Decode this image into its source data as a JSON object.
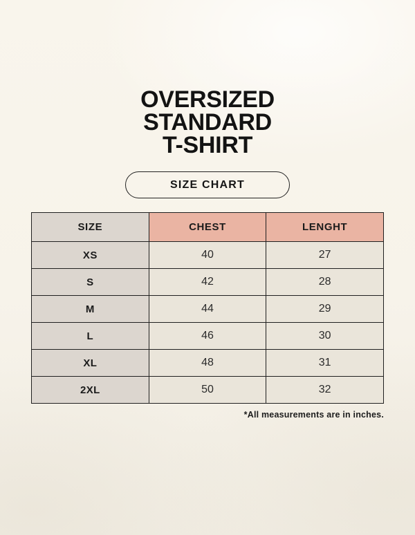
{
  "header": {
    "title_lines": [
      "OVERSIZED",
      "STANDARD",
      "T-SHIRT"
    ],
    "badge_label": "SIZE CHART"
  },
  "footnote": {
    "text": "*All measurements are in inches."
  },
  "colors": {
    "background": "#f7f3ea",
    "header_pink": "#eab4a3",
    "size_column_gray": "#dcd6cf",
    "value_cell_cream": "#eae5da",
    "border": "#1f1f1f",
    "text": "#1a1a1a"
  },
  "chart_data": {
    "type": "table",
    "title": "SIZE CHART",
    "columns": [
      "SIZE",
      "CHEST",
      "LENGHT"
    ],
    "rows": [
      [
        "XS",
        "40",
        "27"
      ],
      [
        "S",
        "42",
        "28"
      ],
      [
        "M",
        "44",
        "29"
      ],
      [
        "L",
        "46",
        "30"
      ],
      [
        "XL",
        "48",
        "31"
      ],
      [
        "2XL",
        "50",
        "32"
      ]
    ]
  }
}
